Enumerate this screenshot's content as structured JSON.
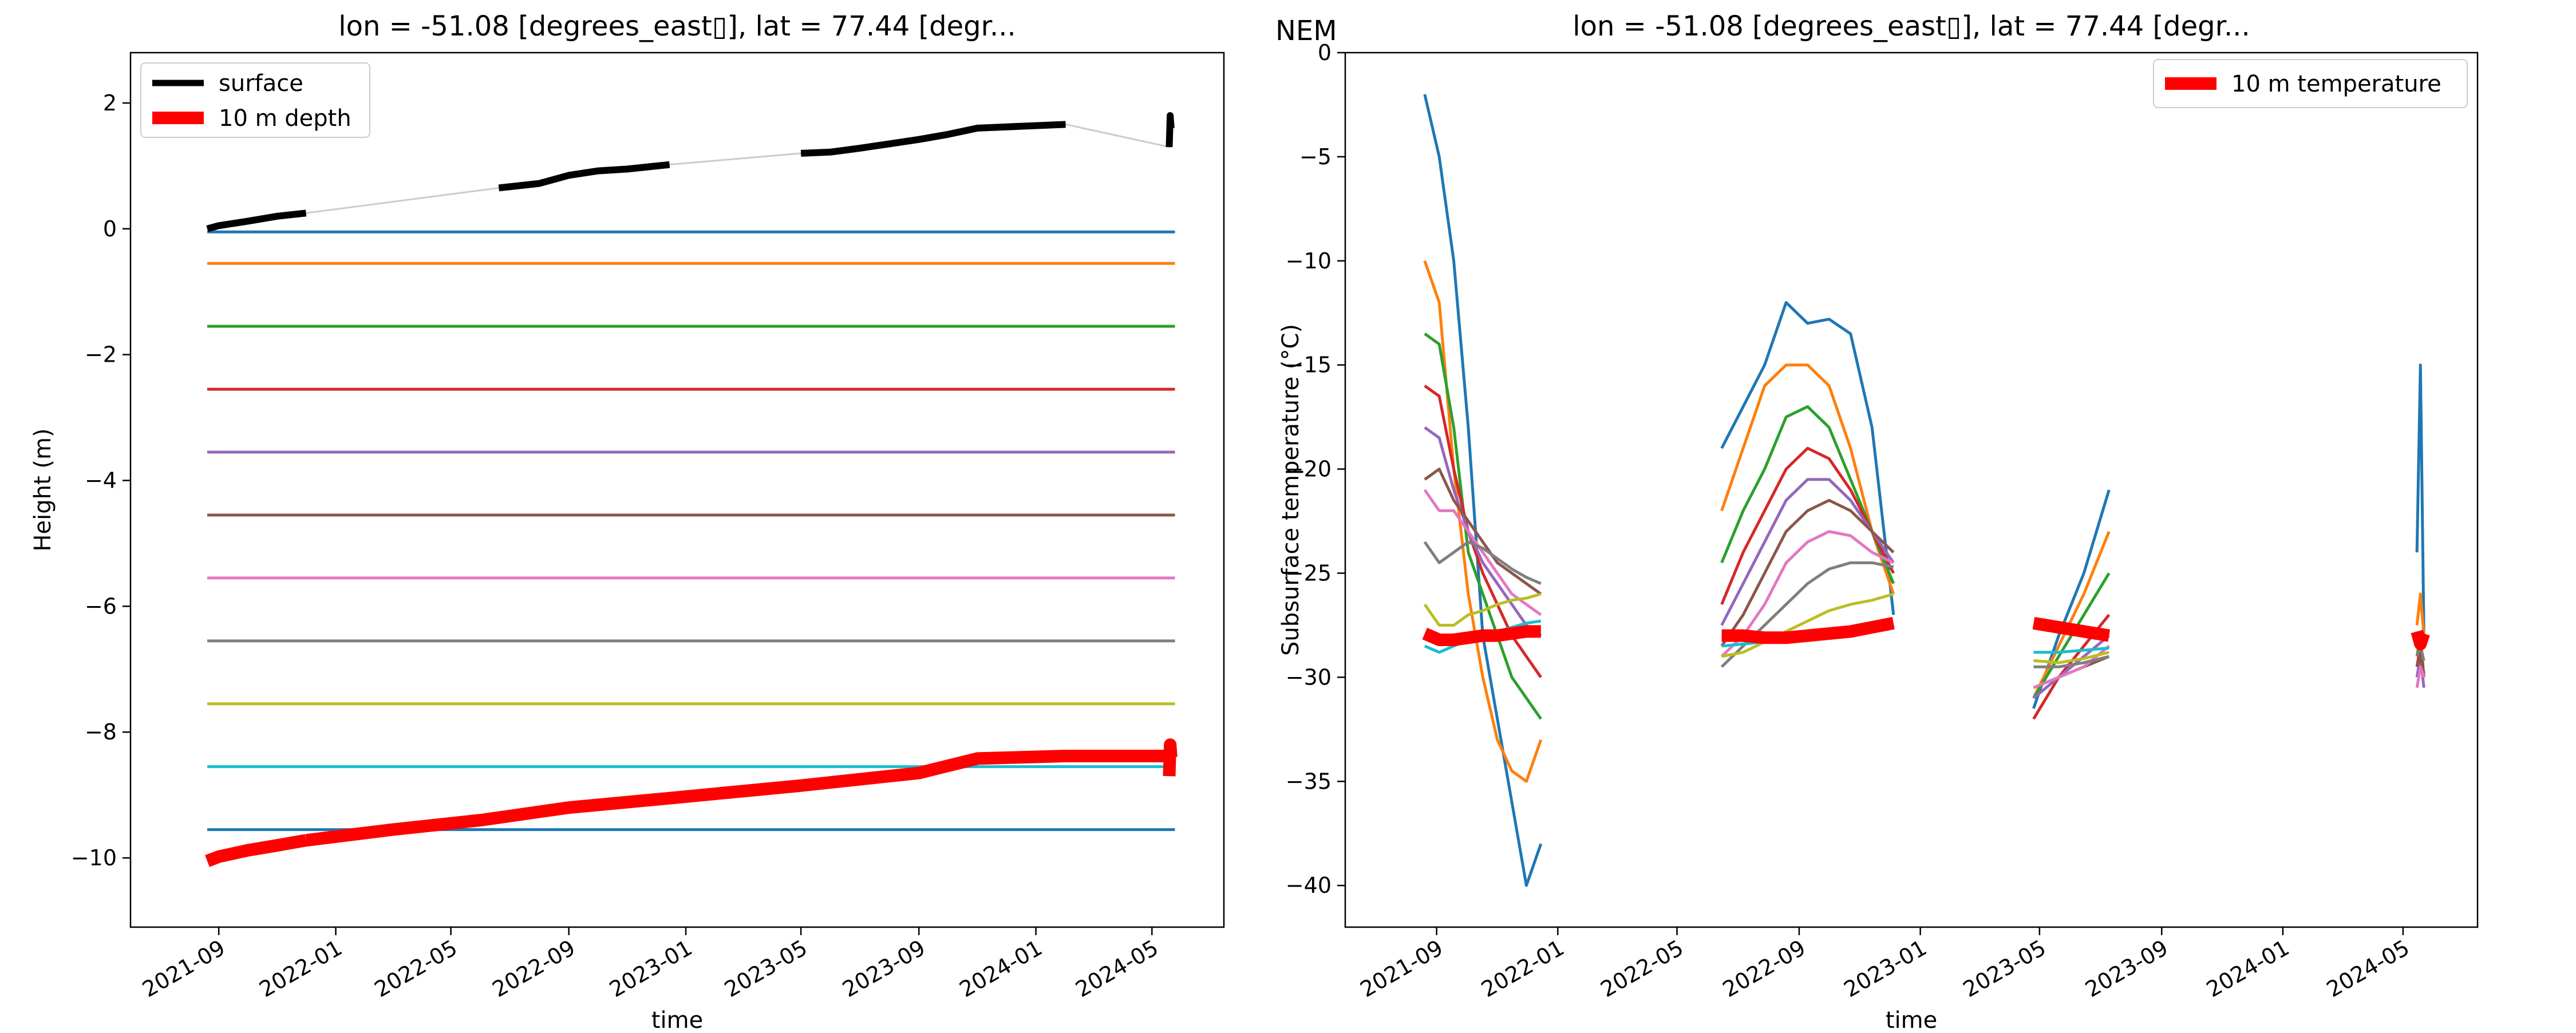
{
  "station_label": "NEM",
  "colors": {
    "C0": "#1f77b4",
    "C1": "#ff7f0e",
    "C2": "#2ca02c",
    "C3": "#d62728",
    "C4": "#9467bd",
    "C5": "#8c564b",
    "C6": "#e377c2",
    "C7": "#7f7f7f",
    "C8": "#bcbd22",
    "C9": "#17becf",
    "surface": "#000000",
    "depth": "#ff0000",
    "connector": "#cccccc"
  },
  "chart_data": [
    {
      "type": "line",
      "title": "lon = -51.08 [degrees_east▯], lat = 77.44 [degr...",
      "xlabel": "time",
      "ylabel": "Height (m)",
      "xlim": [
        "2021-06-01",
        "2024-07-15"
      ],
      "ylim": [
        -11.1,
        2.8
      ],
      "xticks": [
        "2021-09",
        "2022-01",
        "2022-05",
        "2022-09",
        "2023-01",
        "2023-05",
        "2023-09",
        "2024-01",
        "2024-05"
      ],
      "yticks": [
        -10,
        -8,
        -6,
        -4,
        -2,
        0,
        2
      ],
      "legend": {
        "placement": "upper-left",
        "entries": [
          "surface",
          "10 m depth"
        ]
      },
      "sensor_depths": [
        -0.05,
        -0.55,
        -1.55,
        -2.55,
        -3.55,
        -4.55,
        -5.55,
        -6.55,
        -7.55,
        -8.55,
        -9.55
      ],
      "sensor_x": [
        "2021-08-20",
        "2024-05-25"
      ],
      "series": [
        {
          "name": "surface",
          "color": "black",
          "segments": [
            {
              "x": [
                "2021-08-20",
                "2021-09-01",
                "2021-10-01",
                "2021-11-01",
                "2021-12-01"
              ],
              "y": [
                0.0,
                0.05,
                0.12,
                0.2,
                0.25
              ]
            },
            {
              "x": [
                "2022-06-20",
                "2022-08-01",
                "2022-09-01",
                "2022-10-01",
                "2022-11-01",
                "2022-12-15"
              ],
              "y": [
                0.65,
                0.72,
                0.85,
                0.92,
                0.95,
                1.02
              ]
            },
            {
              "x": [
                "2023-05-01",
                "2023-06-01",
                "2023-07-01",
                "2023-08-01",
                "2023-09-01",
                "2023-10-01",
                "2023-11-01",
                "2023-12-01",
                "2024-02-01"
              ],
              "y": [
                1.2,
                1.22,
                1.28,
                1.35,
                1.42,
                1.5,
                1.6,
                1.62,
                1.66
              ]
            },
            {
              "x": [
                "2024-05-19",
                "2024-05-20",
                "2024-05-21"
              ],
              "y": [
                1.3,
                1.8,
                1.6
              ]
            }
          ]
        },
        {
          "name": "10 m depth",
          "color": "red",
          "segments": [
            {
              "x": [
                "2021-08-20",
                "2021-09-01",
                "2021-10-01",
                "2021-11-01",
                "2021-12-01"
              ],
              "y": [
                -10.05,
                -9.98,
                -9.88,
                -9.8,
                -9.72
              ]
            },
            {
              "x": [
                "2021-12-01",
                "2022-03-01",
                "2022-06-01",
                "2022-09-01",
                "2022-12-15",
                "2023-05-01",
                "2023-09-01",
                "2023-11-01",
                "2024-02-01",
                "2024-05-19"
              ],
              "y": [
                -9.72,
                -9.55,
                -9.4,
                -9.2,
                -9.05,
                -8.85,
                -8.65,
                -8.42,
                -8.38,
                -8.38
              ]
            },
            {
              "x": [
                "2024-05-19",
                "2024-05-20",
                "2024-05-21"
              ],
              "y": [
                -8.7,
                -8.2,
                -8.4
              ]
            }
          ]
        }
      ]
    },
    {
      "type": "line",
      "title": "lon = -51.08 [degrees_east▯], lat = 77.44 [degr...",
      "xlabel": "time",
      "ylabel": "Subsurface temperature (°C)",
      "xlim": [
        "2021-06-01",
        "2024-07-15"
      ],
      "ylim": [
        -42,
        0
      ],
      "xticks": [
        "2021-09",
        "2022-01",
        "2022-05",
        "2022-09",
        "2023-01",
        "2023-05",
        "2023-09",
        "2024-01",
        "2024-05"
      ],
      "yticks": [
        -40,
        -35,
        -30,
        -25,
        -20,
        -15,
        -10,
        -5,
        0
      ],
      "legend": {
        "placement": "upper-right",
        "entries": [
          "10 m temperature"
        ]
      },
      "x_periods": [
        [
          "2021-08-20",
          "2021-12-15"
        ],
        [
          "2022-06-15",
          "2022-12-05"
        ],
        [
          "2023-04-25",
          "2023-07-10"
        ],
        [
          "2024-05-15",
          "2024-05-22"
        ]
      ],
      "series": [
        {
          "depth_index": 0,
          "color": "C0",
          "periods": [
            [
              -2,
              -5,
              -10,
              -18,
              -28,
              -32,
              -36,
              -40,
              -38
            ],
            [
              -19,
              -17,
              -15,
              -12,
              -13,
              -12.8,
              -13.5,
              -18,
              -27
            ],
            [
              -31.5,
              -28,
              -25,
              -21
            ],
            [
              -24,
              -15,
              -28
            ]
          ]
        },
        {
          "depth_index": 1,
          "color": "C1",
          "periods": [
            [
              -10,
              -12,
              -20,
              -26,
              -30,
              -33,
              -34.5,
              -35,
              -33
            ],
            [
              -22,
              -19,
              -16,
              -15,
              -15,
              -16,
              -19,
              -23,
              -26
            ],
            [
              -31,
              -28.5,
              -26,
              -23
            ],
            [
              -27.5,
              -26,
              -28
            ]
          ]
        },
        {
          "depth_index": 2,
          "color": "C2",
          "periods": [
            [
              -13.5,
              -14,
              -18,
              -24,
              -26,
              -28,
              -30,
              -31,
              -32
            ],
            [
              -24.5,
              -22,
              -20,
              -17.5,
              -17,
              -18,
              -20.5,
              -23,
              -25.5
            ],
            [
              -31,
              -29,
              -27,
              -25
            ],
            [
              -29,
              -28,
              -30
            ]
          ]
        },
        {
          "depth_index": 3,
          "color": "C3",
          "periods": [
            [
              -16,
              -16.5,
              -20,
              -23,
              -25,
              -26.5,
              -28,
              -29,
              -30
            ],
            [
              -26.5,
              -24,
              -22,
              -20,
              -19,
              -19.5,
              -21,
              -23,
              -25
            ],
            [
              -32,
              -30,
              -28.5,
              -27
            ],
            [
              -29.5,
              -28.5,
              -30
            ]
          ]
        },
        {
          "depth_index": 4,
          "color": "C4",
          "periods": [
            [
              -18,
              -18.5,
              -21,
              -23,
              -24.5,
              -25.5,
              -26.5,
              -27.5,
              -28
            ],
            [
              -27.5,
              -25.5,
              -23.5,
              -21.5,
              -20.5,
              -20.5,
              -21.5,
              -23,
              -24.5
            ],
            [
              -31,
              -30,
              -29,
              -28
            ],
            [
              -30,
              -29,
              -30.5
            ]
          ]
        },
        {
          "depth_index": 5,
          "color": "C5",
          "periods": [
            [
              -20.5,
              -20,
              -21.5,
              -22.5,
              -23.5,
              -24.5,
              -25,
              -25.5,
              -26
            ],
            [
              -28.5,
              -27,
              -25,
              -23,
              -22,
              -21.5,
              -22,
              -23,
              -24
            ],
            [
              -30.5,
              -30,
              -29.5,
              -29
            ],
            [
              -29.5,
              -29,
              -29.8
            ]
          ]
        },
        {
          "depth_index": 6,
          "color": "C6",
          "periods": [
            [
              -21,
              -22,
              -22,
              -23,
              -24,
              -25,
              -26,
              -26.5,
              -27
            ],
            [
              -29,
              -28,
              -26.5,
              -24.5,
              -23.5,
              -23,
              -23.2,
              -24,
              -24.5
            ],
            [
              -30.5,
              -30,
              -29.5,
              -28.5
            ],
            [
              -30.5,
              -29.5,
              -30
            ]
          ]
        },
        {
          "depth_index": 7,
          "color": "C7",
          "periods": [
            [
              -23.5,
              -24.5,
              -24,
              -23.5,
              -23.8,
              -24.3,
              -24.8,
              -25.2,
              -25.5
            ],
            [
              -29.5,
              -28.5,
              -27.5,
              -26.5,
              -25.5,
              -24.8,
              -24.5,
              -24.5,
              -24.7
            ],
            [
              -29.5,
              -29.5,
              -29.3,
              -29
            ],
            [
              -29,
              -28.5,
              -29.2
            ]
          ]
        },
        {
          "depth_index": 8,
          "color": "C8",
          "periods": [
            [
              -26.5,
              -27.5,
              -27.5,
              -27,
              -26.8,
              -26.5,
              -26.3,
              -26.2,
              -26
            ],
            [
              -29,
              -28.8,
              -28.3,
              -27.8,
              -27.3,
              -26.8,
              -26.5,
              -26.3,
              -26
            ],
            [
              -29.2,
              -29.3,
              -29.1,
              -28.8
            ],
            [
              -28.5,
              -28.2,
              -28.6
            ]
          ]
        },
        {
          "depth_index": 9,
          "color": "C9",
          "periods": [
            [
              -28.5,
              -28.8,
              -28.5,
              -28.2,
              -28,
              -27.8,
              -27.6,
              -27.4,
              -27.3
            ],
            [
              -28.5,
              -28.4,
              -28.3,
              -28.2,
              -28,
              -27.9,
              -27.8,
              -27.6,
              -27.5
            ],
            [
              -28.8,
              -28.8,
              -28.7,
              -28.6
            ],
            [
              -28.2,
              -28,
              -28.3
            ]
          ]
        },
        {
          "depth_index": 10,
          "name": "10 m temperature",
          "color": "red",
          "periods": [
            [
              -27.9,
              -28.2,
              -28.2,
              -28.1,
              -28,
              -28,
              -27.9,
              -27.8,
              -27.8
            ],
            [
              -28,
              -28,
              -28.1,
              -28.1,
              -28,
              -27.9,
              -27.8,
              -27.6,
              -27.4
            ],
            [
              -27.4,
              -27.6,
              -27.8,
              -28
            ],
            [
              -27.8,
              -28.4,
              -27.9
            ]
          ]
        }
      ]
    }
  ]
}
